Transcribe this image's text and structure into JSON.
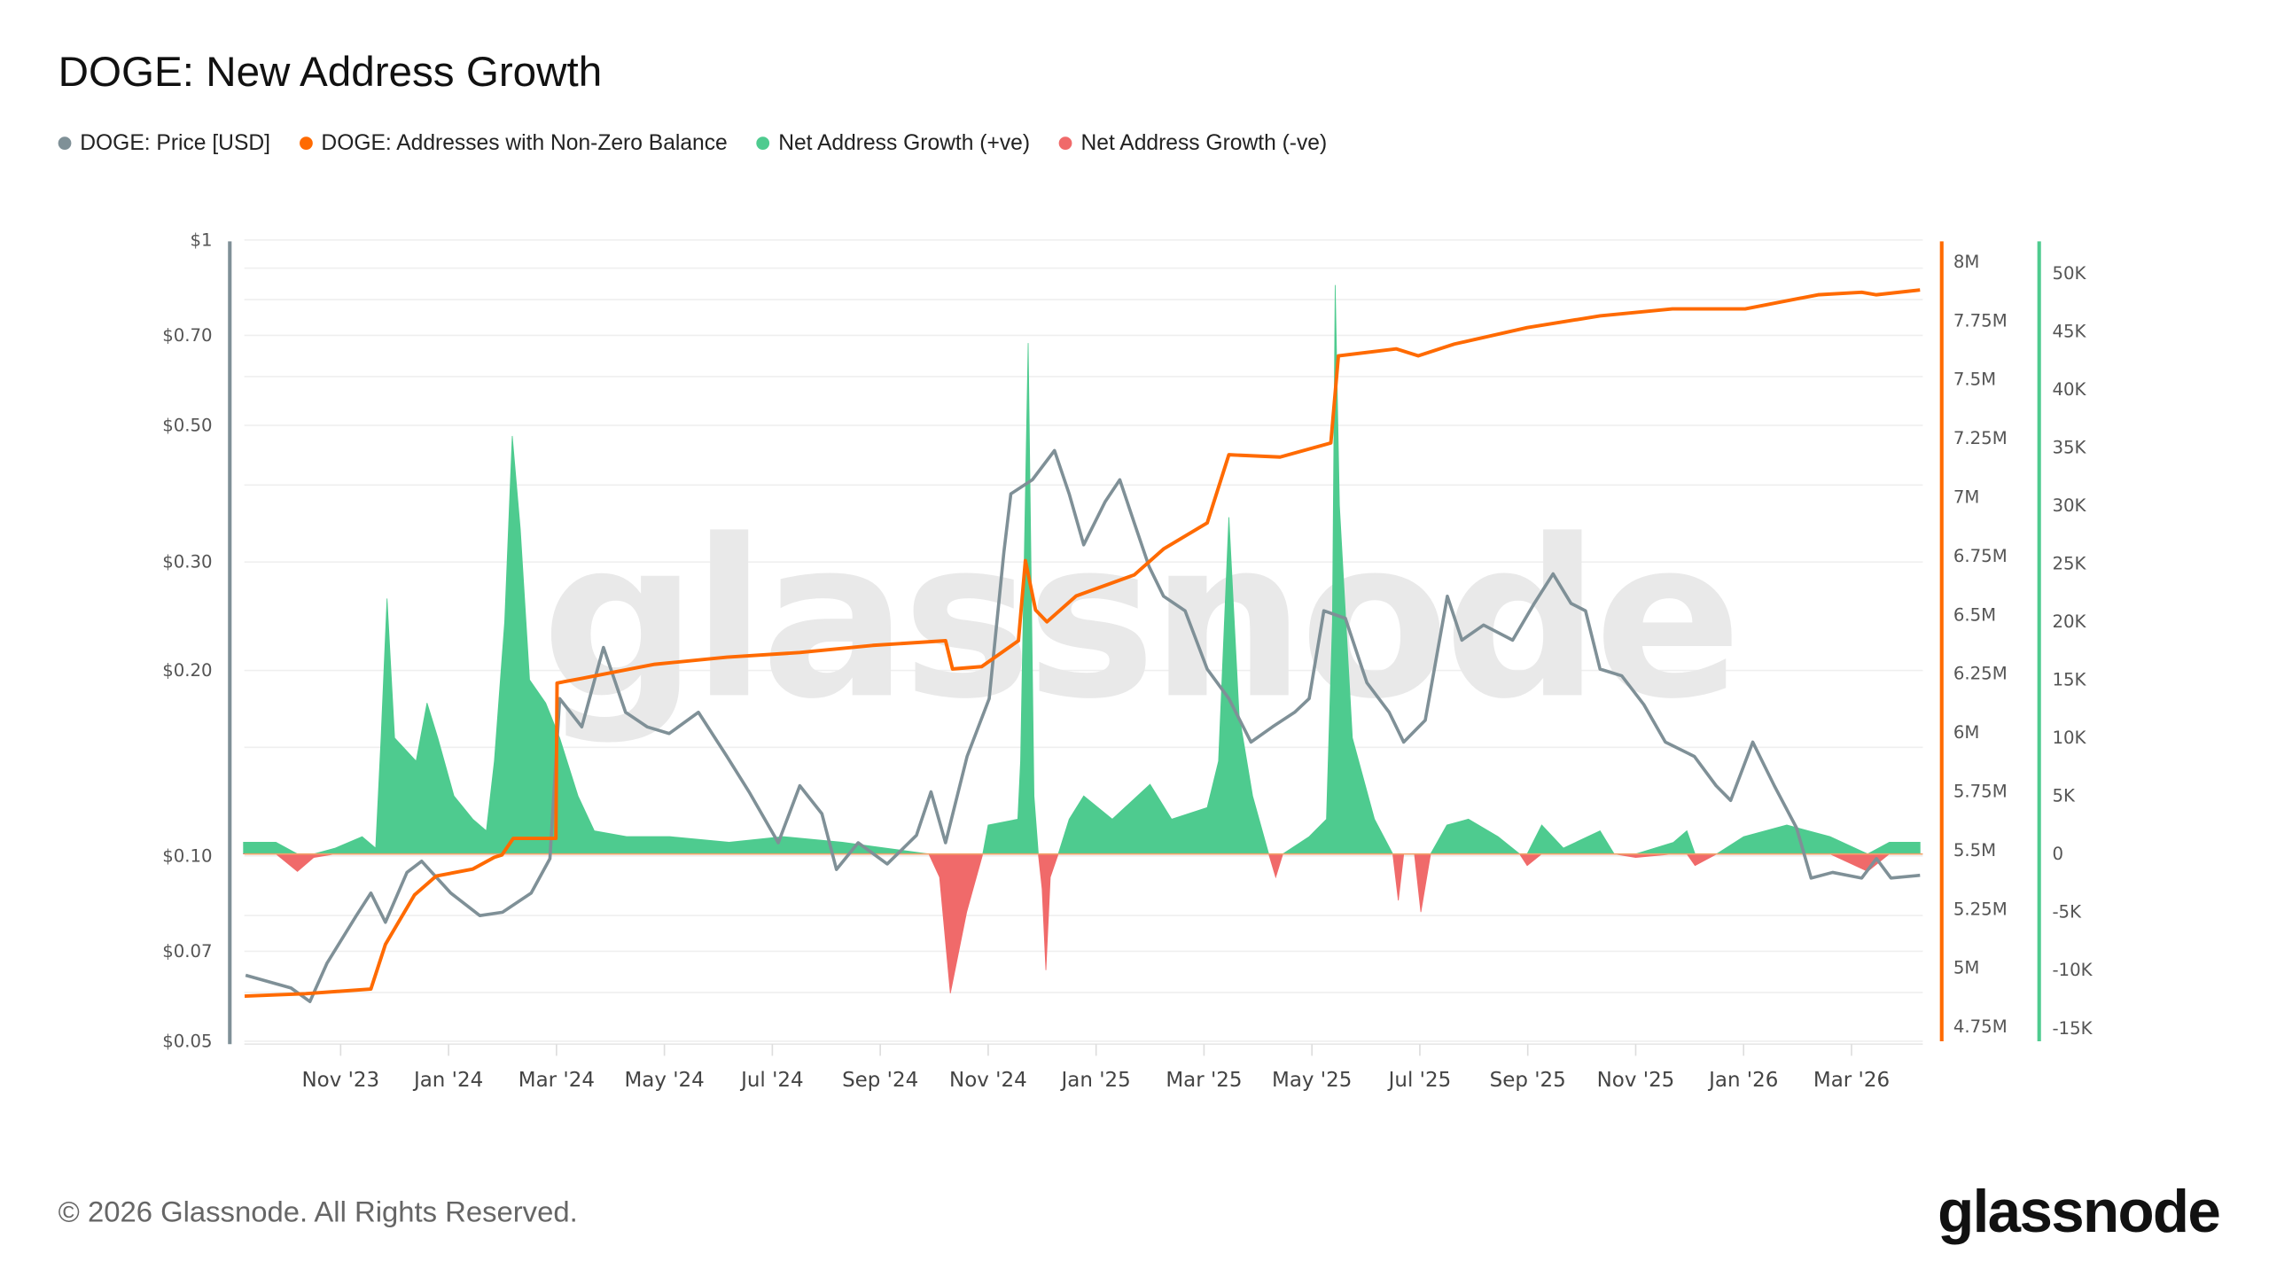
{
  "title": "DOGE: New Address Growth",
  "legend": [
    {
      "label": "DOGE: Price [USD]",
      "color": "#7f9097"
    },
    {
      "label": "DOGE: Addresses with Non-Zero Balance",
      "color": "#ff6a00"
    },
    {
      "label": "Net Address Growth (+ve)",
      "color": "#4ecb8f"
    },
    {
      "label": "Net Address Growth (-ve)",
      "color": "#f06a6a"
    }
  ],
  "footer": "© 2026 Glassnode. All Rights Reserved.",
  "logo": "glassnode",
  "watermark": "glassnode",
  "chart_data": {
    "type": "line",
    "title": "DOGE: New Address Growth",
    "x_unit": "months since Sep 1 2023",
    "x_range": [
      0.2,
      31.3
    ],
    "x_ticks": [
      {
        "t": 2,
        "label": "Nov '23"
      },
      {
        "t": 4,
        "label": "Jan '24"
      },
      {
        "t": 6,
        "label": "Mar '24"
      },
      {
        "t": 8,
        "label": "May '24"
      },
      {
        "t": 10,
        "label": "Jul '24"
      },
      {
        "t": 12,
        "label": "Sep '24"
      },
      {
        "t": 14,
        "label": "Nov '24"
      },
      {
        "t": 16,
        "label": "Jan '25"
      },
      {
        "t": 18,
        "label": "Mar '25"
      },
      {
        "t": 20,
        "label": "May '25"
      },
      {
        "t": 22,
        "label": "Jul '25"
      },
      {
        "t": 24,
        "label": "Sep '25"
      },
      {
        "t": 26,
        "label": "Nov '25"
      },
      {
        "t": 28,
        "label": "Jan '26"
      },
      {
        "t": 30,
        "label": "Mar '26"
      }
    ],
    "price_axis": {
      "scale": "log",
      "range": [
        0.05,
        1
      ],
      "ticks": [
        {
          "v": 1,
          "label": "$1"
        },
        {
          "v": 0.7,
          "label": "$0.70"
        },
        {
          "v": 0.5,
          "label": "$0.50"
        },
        {
          "v": 0.3,
          "label": "$0.30"
        },
        {
          "v": 0.2,
          "label": "$0.20"
        },
        {
          "v": 0.1,
          "label": "$0.10"
        },
        {
          "v": 0.07,
          "label": "$0.07"
        },
        {
          "v": 0.05,
          "label": "$0.05"
        }
      ]
    },
    "address_axis": {
      "range": [
        4.75,
        8.0
      ],
      "unit": "M",
      "ticks": [
        {
          "v": 8,
          "label": "8M"
        },
        {
          "v": 7.75,
          "label": "7.75M"
        },
        {
          "v": 7.5,
          "label": "7.5M"
        },
        {
          "v": 7.25,
          "label": "7.25M"
        },
        {
          "v": 7,
          "label": "7M"
        },
        {
          "v": 6.75,
          "label": "6.75M"
        },
        {
          "v": 6.5,
          "label": "6.5M"
        },
        {
          "v": 6.25,
          "label": "6.25M"
        },
        {
          "v": 6,
          "label": "6M"
        },
        {
          "v": 5.75,
          "label": "5.75M"
        },
        {
          "v": 5.5,
          "label": "5.5M"
        },
        {
          "v": 5.25,
          "label": "5.25M"
        },
        {
          "v": 5,
          "label": "5M"
        },
        {
          "v": 4.75,
          "label": "4.75M"
        }
      ]
    },
    "growth_axis": {
      "range": [
        -15,
        50
      ],
      "unit": "K",
      "ticks": [
        {
          "v": 50,
          "label": "50K"
        },
        {
          "v": 45,
          "label": "45K"
        },
        {
          "v": 40,
          "label": "40K"
        },
        {
          "v": 35,
          "label": "35K"
        },
        {
          "v": 30,
          "label": "30K"
        },
        {
          "v": 25,
          "label": "25K"
        },
        {
          "v": 20,
          "label": "20K"
        },
        {
          "v": 15,
          "label": "15K"
        },
        {
          "v": 10,
          "label": "10K"
        },
        {
          "v": 5,
          "label": "5K"
        },
        {
          "v": 0,
          "label": "0"
        },
        {
          "v": -5,
          "label": "-5K"
        },
        {
          "v": -10,
          "label": "-10K"
        },
        {
          "v": -15,
          "label": "-15K"
        }
      ]
    },
    "series": [
      {
        "name": "DOGE: Price [USD]",
        "color": "#7f9097",
        "points": [
          [
            0.24,
            0.064
          ],
          [
            1.08,
            0.061
          ],
          [
            1.43,
            0.058
          ],
          [
            1.75,
            0.067
          ],
          [
            2.29,
            0.08
          ],
          [
            2.56,
            0.087
          ],
          [
            2.83,
            0.078
          ],
          [
            3.23,
            0.094
          ],
          [
            3.5,
            0.098
          ],
          [
            4.04,
            0.087
          ],
          [
            4.58,
            0.08
          ],
          [
            5.0,
            0.081
          ],
          [
            5.53,
            0.087
          ],
          [
            5.88,
            0.099
          ],
          [
            6.06,
            0.18
          ],
          [
            6.47,
            0.162
          ],
          [
            6.87,
            0.218
          ],
          [
            7.28,
            0.171
          ],
          [
            7.68,
            0.162
          ],
          [
            8.09,
            0.158
          ],
          [
            8.63,
            0.171
          ],
          [
            9.16,
            0.145
          ],
          [
            9.57,
            0.127
          ],
          [
            10.11,
            0.105
          ],
          [
            10.51,
            0.13
          ],
          [
            10.92,
            0.117
          ],
          [
            11.19,
            0.095
          ],
          [
            11.59,
            0.105
          ],
          [
            12.13,
            0.097
          ],
          [
            12.67,
            0.108
          ],
          [
            12.94,
            0.127
          ],
          [
            13.21,
            0.105
          ],
          [
            13.61,
            0.145
          ],
          [
            14.02,
            0.18
          ],
          [
            14.29,
            0.311
          ],
          [
            14.42,
            0.387
          ],
          [
            14.82,
            0.408
          ],
          [
            15.23,
            0.455
          ],
          [
            15.5,
            0.387
          ],
          [
            15.77,
            0.32
          ],
          [
            16.17,
            0.376
          ],
          [
            16.44,
            0.408
          ],
          [
            16.71,
            0.347
          ],
          [
            16.98,
            0.295
          ],
          [
            17.25,
            0.264
          ],
          [
            17.65,
            0.25
          ],
          [
            18.06,
            0.201
          ],
          [
            18.46,
            0.18
          ],
          [
            18.87,
            0.153
          ],
          [
            19.27,
            0.162
          ],
          [
            19.68,
            0.171
          ],
          [
            19.95,
            0.18
          ],
          [
            20.22,
            0.25
          ],
          [
            20.62,
            0.243
          ],
          [
            21.02,
            0.191
          ],
          [
            21.43,
            0.171
          ],
          [
            21.7,
            0.153
          ],
          [
            22.1,
            0.166
          ],
          [
            22.51,
            0.264
          ],
          [
            22.78,
            0.224
          ],
          [
            23.18,
            0.237
          ],
          [
            23.72,
            0.224
          ],
          [
            24.12,
            0.257
          ],
          [
            24.47,
            0.287
          ],
          [
            24.8,
            0.257
          ],
          [
            25.07,
            0.25
          ],
          [
            25.34,
            0.201
          ],
          [
            25.74,
            0.196
          ],
          [
            26.15,
            0.176
          ],
          [
            26.55,
            0.153
          ],
          [
            27.09,
            0.145
          ],
          [
            27.49,
            0.13
          ],
          [
            27.76,
            0.123
          ],
          [
            28.17,
            0.153
          ],
          [
            28.57,
            0.13
          ],
          [
            28.98,
            0.111
          ],
          [
            29.25,
            0.092
          ],
          [
            29.65,
            0.094
          ],
          [
            30.19,
            0.092
          ],
          [
            30.46,
            0.099
          ],
          [
            30.73,
            0.092
          ],
          [
            31.27,
            0.093
          ]
        ]
      },
      {
        "name": "DOGE: Addresses with Non-Zero Balance",
        "unit": "M",
        "color": "#ff6a00",
        "points": [
          [
            0.22,
            4.88
          ],
          [
            1.35,
            4.89
          ],
          [
            2.56,
            4.91
          ],
          [
            2.83,
            5.1
          ],
          [
            3.37,
            5.31
          ],
          [
            3.77,
            5.39
          ],
          [
            4.45,
            5.42
          ],
          [
            4.85,
            5.47
          ],
          [
            4.99,
            5.48
          ],
          [
            5.2,
            5.55
          ],
          [
            5.99,
            5.55
          ],
          [
            6.01,
            6.21
          ],
          [
            6.47,
            6.23
          ],
          [
            7.82,
            6.29
          ],
          [
            9.16,
            6.32
          ],
          [
            10.51,
            6.34
          ],
          [
            11.86,
            6.37
          ],
          [
            13.21,
            6.39
          ],
          [
            13.34,
            6.27
          ],
          [
            13.88,
            6.28
          ],
          [
            14.56,
            6.39
          ],
          [
            14.69,
            6.73
          ],
          [
            14.88,
            6.52
          ],
          [
            15.09,
            6.47
          ],
          [
            15.63,
            6.58
          ],
          [
            16.71,
            6.67
          ],
          [
            17.25,
            6.78
          ],
          [
            18.06,
            6.89
          ],
          [
            18.46,
            7.18
          ],
          [
            19.41,
            7.17
          ],
          [
            20.35,
            7.23
          ],
          [
            20.49,
            7.6
          ],
          [
            21.56,
            7.63
          ],
          [
            21.97,
            7.6
          ],
          [
            22.64,
            7.65
          ],
          [
            23.99,
            7.72
          ],
          [
            25.34,
            7.77
          ],
          [
            26.68,
            7.8
          ],
          [
            28.03,
            7.8
          ],
          [
            29.38,
            7.86
          ],
          [
            30.19,
            7.87
          ],
          [
            30.46,
            7.86
          ],
          [
            31.27,
            7.88
          ]
        ]
      },
      {
        "name": "Net Address Growth",
        "unit": "K",
        "color_pos": "#4ecb8f",
        "color_neg": "#f06a6a",
        "points": [
          [
            0.2,
            1
          ],
          [
            0.8,
            1
          ],
          [
            1.2,
            -1.5
          ],
          [
            1.5,
            -0.3
          ],
          [
            1.9,
            0.5
          ],
          [
            2.4,
            1.5
          ],
          [
            2.65,
            0.5
          ],
          [
            2.75,
            10
          ],
          [
            2.86,
            22
          ],
          [
            3.0,
            10
          ],
          [
            3.4,
            8
          ],
          [
            3.6,
            13
          ],
          [
            3.8,
            10
          ],
          [
            4.1,
            5
          ],
          [
            4.45,
            3
          ],
          [
            4.7,
            2
          ],
          [
            4.85,
            8
          ],
          [
            5.04,
            20
          ],
          [
            5.18,
            36
          ],
          [
            5.33,
            28
          ],
          [
            5.5,
            15
          ],
          [
            5.8,
            13
          ],
          [
            6.06,
            10
          ],
          [
            6.4,
            5
          ],
          [
            6.7,
            2
          ],
          [
            7.3,
            1.5
          ],
          [
            8.1,
            1.5
          ],
          [
            9.2,
            1
          ],
          [
            10.2,
            1.5
          ],
          [
            11.3,
            1
          ],
          [
            12.1,
            0.5
          ],
          [
            12.9,
            0
          ],
          [
            13.1,
            -2
          ],
          [
            13.3,
            -12
          ],
          [
            13.6,
            -5
          ],
          [
            13.9,
            0
          ],
          [
            14.0,
            2.5
          ],
          [
            14.55,
            3
          ],
          [
            14.6,
            8
          ],
          [
            14.74,
            44
          ],
          [
            14.85,
            5
          ],
          [
            14.93,
            0
          ],
          [
            15.0,
            -3
          ],
          [
            15.07,
            -10
          ],
          [
            15.15,
            -2
          ],
          [
            15.3,
            0
          ],
          [
            15.5,
            3
          ],
          [
            15.77,
            5
          ],
          [
            16.3,
            3
          ],
          [
            17.0,
            6
          ],
          [
            17.4,
            3
          ],
          [
            18.06,
            4
          ],
          [
            18.27,
            8
          ],
          [
            18.46,
            29
          ],
          [
            18.65,
            12
          ],
          [
            18.9,
            5
          ],
          [
            19.2,
            0
          ],
          [
            19.33,
            -2
          ],
          [
            19.46,
            0
          ],
          [
            19.95,
            1.5
          ],
          [
            20.27,
            3
          ],
          [
            20.38,
            20
          ],
          [
            20.43,
            49
          ],
          [
            20.51,
            30
          ],
          [
            20.75,
            10
          ],
          [
            21.16,
            3
          ],
          [
            21.5,
            0
          ],
          [
            21.6,
            -4
          ],
          [
            21.7,
            0
          ],
          [
            21.9,
            0
          ],
          [
            22.02,
            -5
          ],
          [
            22.2,
            0
          ],
          [
            22.5,
            2.5
          ],
          [
            22.9,
            3
          ],
          [
            23.45,
            1.5
          ],
          [
            23.85,
            0
          ],
          [
            23.99,
            -1
          ],
          [
            24.26,
            2.5
          ],
          [
            24.66,
            0.5
          ],
          [
            25.34,
            2
          ],
          [
            25.6,
            0
          ],
          [
            26.0,
            -0.3
          ],
          [
            26.7,
            1
          ],
          [
            26.95,
            2
          ],
          [
            27.1,
            -1
          ],
          [
            27.5,
            0
          ],
          [
            28.0,
            1.5
          ],
          [
            28.8,
            2.5
          ],
          [
            29.6,
            1.5
          ],
          [
            30.3,
            -1.5
          ],
          [
            30.7,
            1
          ],
          [
            31.27,
            1
          ]
        ]
      }
    ]
  }
}
